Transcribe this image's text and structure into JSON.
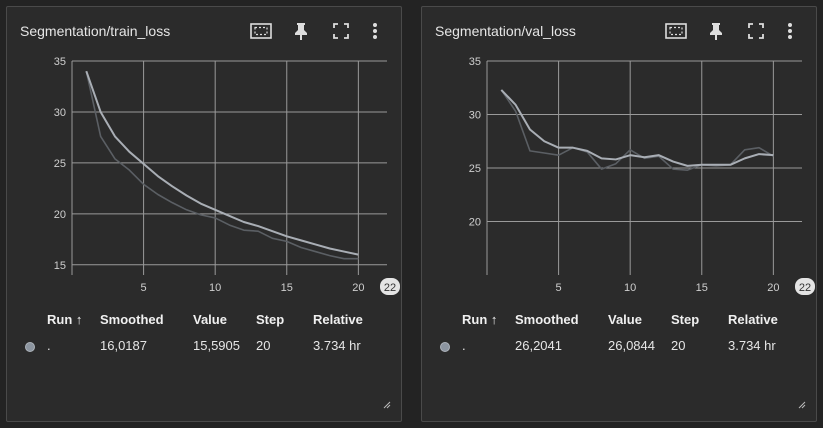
{
  "cards": [
    {
      "title": "Segmentation/train_loss",
      "toolbar_icons": [
        "fit-domain-icon",
        "pin-icon",
        "fullscreen-icon",
        "more-vert-icon"
      ],
      "chart_data": {
        "type": "line",
        "x_ticks": [
          "5",
          "10",
          "15",
          "20"
        ],
        "y_ticks": [
          "15",
          "20",
          "25",
          "30",
          "35"
        ],
        "x_extra_tick": "22",
        "xlim": [
          0,
          22
        ],
        "ylim": [
          14,
          35
        ],
        "grid": true,
        "series": [
          {
            "role": "raw",
            "x": [
              1,
              2,
              3,
              4,
              5,
              6,
              7,
              8,
              9,
              10,
              11,
              12,
              13,
              14,
              15,
              16,
              17,
              18,
              19,
              20
            ],
            "y": [
              34.0,
              27.6,
              25.4,
              24.3,
              22.9,
              21.9,
              21.1,
              20.4,
              19.9,
              19.6,
              18.9,
              18.4,
              18.3,
              17.6,
              17.3,
              16.7,
              16.3,
              15.9,
              15.6,
              15.6
            ]
          },
          {
            "role": "smoothed",
            "x": [
              1,
              2,
              3,
              4,
              5,
              6,
              7,
              8,
              9,
              10,
              11,
              12,
              13,
              14,
              15,
              16,
              17,
              18,
              19,
              20
            ],
            "y": [
              34.0,
              30.0,
              27.6,
              26.1,
              24.9,
              23.7,
              22.7,
              21.8,
              21.0,
              20.4,
              19.8,
              19.2,
              18.8,
              18.3,
              17.8,
              17.4,
              17.0,
              16.6,
              16.3,
              16.0
            ]
          }
        ]
      },
      "table": {
        "headers": {
          "run": "Run ↑",
          "smoothed": "Smoothed",
          "value": "Value",
          "step": "Step",
          "relative": "Relative"
        },
        "row": {
          "run": ".",
          "smoothed": "16,0187",
          "value": "15,5905",
          "step": "20",
          "relative": "3.734 hr"
        }
      }
    },
    {
      "title": "Segmentation/val_loss",
      "toolbar_icons": [
        "fit-domain-icon",
        "pin-icon",
        "fullscreen-icon",
        "more-vert-icon"
      ],
      "chart_data": {
        "type": "line",
        "x_ticks": [
          "5",
          "10",
          "15",
          "20"
        ],
        "y_ticks": [
          "20",
          "25",
          "30",
          "35"
        ],
        "x_extra_tick": "22",
        "xlim": [
          0,
          22
        ],
        "ylim": [
          15,
          35
        ],
        "grid": true,
        "series": [
          {
            "role": "raw",
            "x": [
              1,
              2,
              3,
              4,
              5,
              6,
              7,
              8,
              9,
              10,
              11,
              12,
              13,
              14,
              15,
              16,
              17,
              18,
              19,
              20
            ],
            "y": [
              32.3,
              30.3,
              26.6,
              26.4,
              26.2,
              26.9,
              26.5,
              24.9,
              25.4,
              26.7,
              25.9,
              26.1,
              24.9,
              24.8,
              25.3,
              25.2,
              25.3,
              26.7,
              26.9,
              26.1
            ]
          },
          {
            "role": "smoothed",
            "x": [
              1,
              2,
              3,
              4,
              5,
              6,
              7,
              8,
              9,
              10,
              11,
              12,
              13,
              14,
              15,
              16,
              17,
              18,
              19,
              20
            ],
            "y": [
              32.3,
              30.9,
              28.6,
              27.5,
              26.9,
              26.9,
              26.6,
              25.9,
              25.8,
              26.2,
              26.0,
              26.2,
              25.6,
              25.2,
              25.3,
              25.3,
              25.3,
              25.9,
              26.3,
              26.2
            ]
          }
        ]
      },
      "table": {
        "headers": {
          "run": "Run ↑",
          "smoothed": "Smoothed",
          "value": "Value",
          "step": "Step",
          "relative": "Relative"
        },
        "row": {
          "run": ".",
          "smoothed": "26,2041",
          "value": "26,0844",
          "step": "20",
          "relative": "3.734 hr"
        }
      }
    }
  ],
  "colors": {
    "smoothed_line": "#a9aeb5",
    "raw_line": "#5b5f64",
    "grid": "#9a9a9a",
    "run_dot": "#8c95a0"
  }
}
